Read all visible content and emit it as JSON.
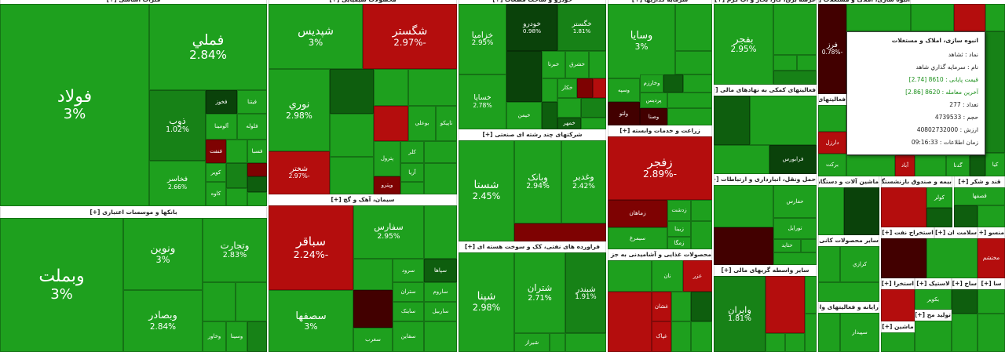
{
  "sectors": [
    {
      "title": "فلزات اساسی [+]",
      "tiles": [
        {
          "name": "فولاد",
          "change": "3%"
        },
        {
          "name": "فملي",
          "change": "2.84%"
        },
        {
          "name": "ذوب",
          "change": "1.02%"
        },
        {
          "name": "فخوز"
        },
        {
          "name": "فيتنا"
        },
        {
          "name": "آلومينا"
        },
        {
          "name": "فلوله"
        },
        {
          "name": "فنفت"
        },
        {
          "name": "فسبا"
        },
        {
          "name": "فخاسر",
          "change": "2.66%"
        },
        {
          "name": "کوير"
        },
        {
          "name": "کاوه"
        }
      ]
    },
    {
      "title": "بانکها و موسسات اعتباری [+]",
      "tiles": [
        {
          "name": "وبملت",
          "change": "3%"
        },
        {
          "name": "ونوين",
          "change": "3%"
        },
        {
          "name": "وتجارت",
          "change": "2.83%"
        },
        {
          "name": "وبصادر",
          "change": "2.84%"
        },
        {
          "name": "وخاور"
        },
        {
          "name": "وسينا"
        }
      ]
    },
    {
      "title": "محصولات شیمیایی [+]",
      "tiles": [
        {
          "name": "شپديس",
          "change": "3%"
        },
        {
          "name": "شگستر",
          "change": "-2.97%"
        },
        {
          "name": "نوري",
          "change": "2.98%"
        },
        {
          "name": "بوعلي"
        },
        {
          "name": "تاپيکو"
        },
        {
          "name": "پترول"
        },
        {
          "name": "کلر"
        },
        {
          "name": "آريا"
        },
        {
          "name": "وپترو"
        },
        {
          "name": "شختر",
          "change": "-2.97%"
        }
      ]
    },
    {
      "title": "سیمان، آهک و گچ [+]",
      "tiles": [
        {
          "name": "سباقر",
          "change": "-2.24%"
        },
        {
          "name": "سصفها",
          "change": "3%"
        },
        {
          "name": "سفارس",
          "change": "2.95%"
        },
        {
          "name": "سپاها"
        },
        {
          "name": "سرود"
        },
        {
          "name": "ستران"
        },
        {
          "name": "ساروم"
        },
        {
          "name": "ساينک"
        },
        {
          "name": "ساربيل"
        },
        {
          "name": "سغرب"
        },
        {
          "name": "سقاين"
        }
      ]
    },
    {
      "title": "خودرو و ساخت قطعات [+]",
      "tiles": [
        {
          "name": "خزاميا",
          "change": "2.95%"
        },
        {
          "name": "خساپا",
          "change": "2.78%"
        },
        {
          "name": "خبرنا"
        },
        {
          "name": "خشرق"
        },
        {
          "name": "خکار"
        },
        {
          "name": "خمهر"
        },
        {
          "name": "خودرو",
          "change": "0.98%"
        },
        {
          "name": "خگستر",
          "change": "1.81%"
        },
        {
          "name": "خيمن"
        }
      ]
    },
    {
      "title": "شرکتهای چند رشته ای صنعتی [+]",
      "tiles": [
        {
          "name": "شستا",
          "change": "2.45%"
        },
        {
          "name": "وبانک",
          "change": "2.94%"
        },
        {
          "name": "وغدير",
          "change": "2.42%"
        }
      ]
    },
    {
      "title": "فراورده های نفتی، کک و سوخت هسته ای [+]",
      "tiles": [
        {
          "name": "شپنا",
          "change": "2.98%"
        },
        {
          "name": "شتران",
          "change": "2.71%"
        },
        {
          "name": "شبندر",
          "change": "1.91%"
        },
        {
          "name": "شيراز"
        }
      ]
    },
    {
      "title": "سرمایه گذاریها [+]",
      "tiles": [
        {
          "name": "وسايا",
          "change": "3%"
        },
        {
          "name": "وسپه"
        },
        {
          "name": "وخارزم"
        },
        {
          "name": "پرديس"
        },
        {
          "name": "ولتو"
        },
        {
          "name": "وصنا"
        }
      ]
    },
    {
      "title": "زراعت و خدمات وابسته [+]",
      "tiles": [
        {
          "name": "زفجر",
          "change": "-2.89%"
        },
        {
          "name": "زماهان"
        },
        {
          "name": "زدشت"
        },
        {
          "name": "زبينا"
        },
        {
          "name": "زمگا"
        },
        {
          "name": "سيمرغ"
        }
      ]
    },
    {
      "title": "محصولات غذایی و آشامیدنی به جز قند و شکر [+]",
      "tiles": [
        {
          "name": "نان"
        },
        {
          "name": "عزر"
        },
        {
          "name": "غشان"
        },
        {
          "name": "غپاک"
        }
      ]
    },
    {
      "title": "عرضه برق، گاز، بخار و آب گرم [+]",
      "tiles": [
        {
          "name": "بفجر",
          "change": "2.95%"
        }
      ]
    },
    {
      "title": "فعالیتهای کمکی به نهادهای مالی [+]",
      "tiles": [
        {
          "name": "فرابورس"
        }
      ]
    },
    {
      "title": "حمل ونقل، انبارداری و ارتباطات [+]",
      "tiles": [
        {
          "name": "حفارس"
        },
        {
          "name": "تورايل"
        },
        {
          "name": "حتايد"
        }
      ]
    },
    {
      "title": "سایر واسطه گریهای مالی [+]",
      "tiles": [
        {
          "name": "وايران",
          "change": "1.81%"
        }
      ]
    },
    {
      "title": "فعالیتهای دارویی [+]",
      "tiles": [
        {
          "name": "دارزل"
        },
        {
          "name": "برکت"
        }
      ]
    },
    {
      "title": "انبوه سازی، املاک و مستغلات [+]",
      "tiles": [
        {
          "name": "فرز",
          "change": "-0.78%"
        },
        {
          "name": "آباد"
        },
        {
          "name": "گدنا"
        },
        {
          "name": "کيا"
        }
      ]
    },
    {
      "title": "ماشین آلات و دستگاههای برقی [+]"
    },
    {
      "title": "سایر محصولات کانی غیر فلزی [+]",
      "tiles": [
        {
          "name": "کرازي"
        }
      ]
    },
    {
      "title": "رایانه و فعالیتهای وابسته [+]",
      "tiles": [
        {
          "name": "سپيدار"
        }
      ]
    },
    {
      "title": "بیمه و صندوق بازنشستگی به جز [+]",
      "tiles": [
        {
          "name": "کولر"
        }
      ]
    },
    {
      "title": "قند و شکر [+]",
      "tiles": [
        {
          "name": "قصفها"
        }
      ]
    },
    {
      "title": "استخراج نفت [+]"
    },
    {
      "title": "سلامت ان [+]"
    },
    {
      "title": "منسو [+]",
      "tiles": [
        {
          "name": "مختشم"
        }
      ]
    },
    {
      "title": "استخرا [+]"
    },
    {
      "title": "لاستیک [+]",
      "tiles": [
        {
          "name": "بکوير"
        }
      ]
    },
    {
      "title": "ساخ [+]"
    },
    {
      "title": "سا [+]"
    },
    {
      "title": "ماشين [+]"
    },
    {
      "title": "تولید مح [+]"
    }
  ],
  "tooltip": {
    "title": "انبوه سازی، املاک و مستغلات",
    "lines": [
      "نماد : ثشاهد",
      "نام : سرمايه گذاري شاهد",
      "قیمت پایانی : 8610 [2.74]",
      "آخرین معامله : 8620 [2.86]",
      "تعداد : 277",
      "حجم : 4739533",
      "ارزش : 40802732000",
      "زمان اطلاعات : 09:16:33"
    ]
  }
}
